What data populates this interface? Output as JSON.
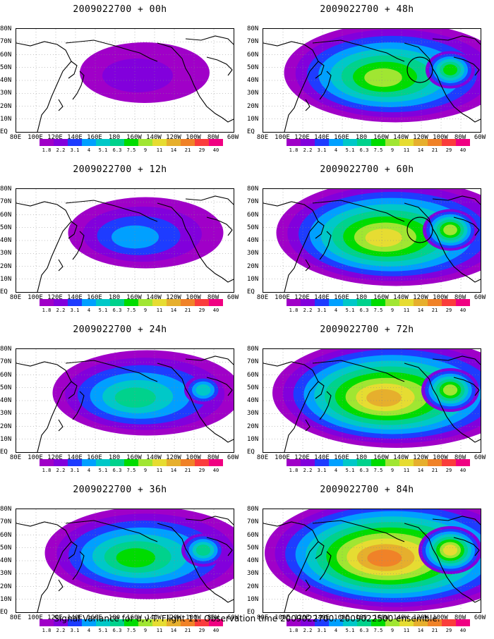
{
  "panels": [
    {
      "title": "2009022700 + 00h",
      "level": 0.2,
      "circle": false
    },
    {
      "title": "2009022700 + 48h",
      "level": 0.75,
      "circle": true
    },
    {
      "title": "2009022700 + 12h",
      "level": 0.35,
      "circle": false
    },
    {
      "title": "2009022700 + 60h",
      "level": 0.85,
      "circle": true
    },
    {
      "title": "2009022700 + 24h",
      "level": 0.55,
      "circle": false
    },
    {
      "title": "2009022700 + 72h",
      "level": 0.9,
      "circle": false
    },
    {
      "title": "2009022700 + 36h",
      "level": 0.65,
      "circle": false
    },
    {
      "title": "2009022700 + 84h",
      "level": 1.0,
      "circle": false
    }
  ],
  "lat_labels": [
    "80N",
    "70N",
    "60N",
    "50N",
    "40N",
    "30N",
    "20N",
    "10N",
    "EQ"
  ],
  "lon_labels": [
    "80E",
    "100E",
    "120E",
    "140E",
    "160E",
    "180",
    "160W",
    "140W",
    "120W",
    "100W",
    "80W",
    "60W"
  ],
  "colorbar": {
    "ticks": [
      "1.8",
      "2.2",
      "3.1",
      "4",
      "5.1",
      "6.3",
      "7.5",
      "9",
      "11",
      "14",
      "21",
      "29",
      "40"
    ],
    "colors": [
      "#a000c8",
      "#8200dc",
      "#1e3cff",
      "#00a0ff",
      "#00c8c8",
      "#00d28c",
      "#00dc00",
      "#a0e632",
      "#e6dc32",
      "#e6af2d",
      "#f08228",
      "#fa3c3c",
      "#f00082"
    ]
  },
  "footer": "Signal Variance for u,v,T. Flight 11. Observation time 2009022700. 2009022500 ensemble."
}
